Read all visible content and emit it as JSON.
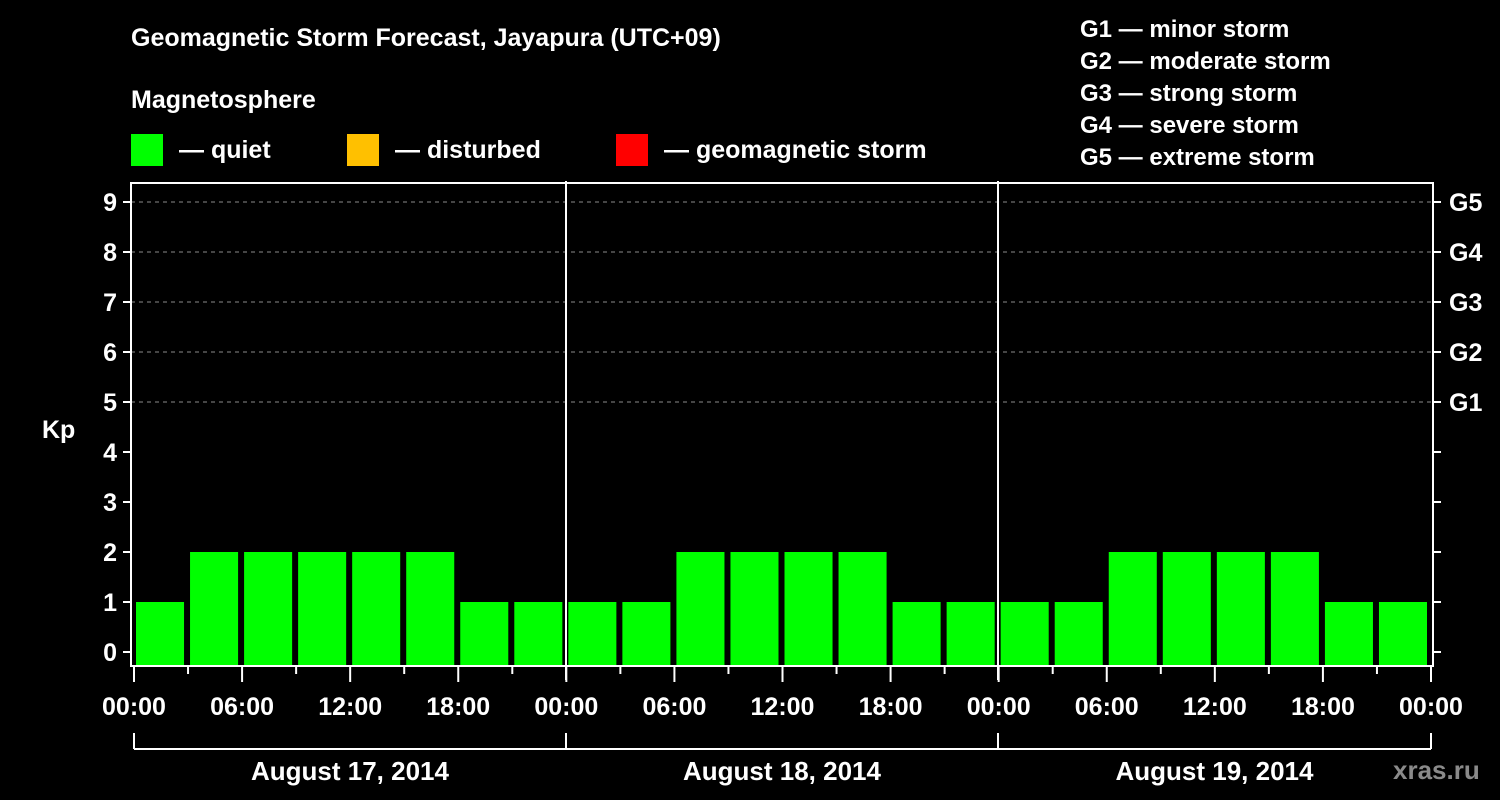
{
  "header": {
    "title": "Geomagnetic Storm Forecast, Jayapura (UTC+09)",
    "subtitle": "Magnetosphere"
  },
  "legend": [
    {
      "label": "— quiet",
      "color": "#00ff00"
    },
    {
      "label": "— disturbed",
      "color": "#ffc000"
    },
    {
      "label": "— geomagnetic storm",
      "color": "#ff0000"
    }
  ],
  "g_scale_legend": [
    "G1 — minor storm",
    "G2 — moderate storm",
    "G3 — strong storm",
    "G4 — severe storm",
    "G5 — extreme storm"
  ],
  "watermark": "xras.ru",
  "chart_data": {
    "type": "bar",
    "title": "Geomagnetic Storm Forecast, Jayapura (UTC+09)",
    "ylabel": "Kp",
    "xlabel": "",
    "ylim": [
      0,
      9
    ],
    "yticks": [
      0,
      1,
      2,
      3,
      4,
      5,
      6,
      7,
      8,
      9
    ],
    "right_axis_labels": [
      {
        "kp": 5,
        "label": "G1"
      },
      {
        "kp": 6,
        "label": "G2"
      },
      {
        "kp": 7,
        "label": "G3"
      },
      {
        "kp": 8,
        "label": "G4"
      },
      {
        "kp": 9,
        "label": "G5"
      }
    ],
    "grid": {
      "horizontal_dashed_at": [
        5,
        6,
        7,
        8,
        9
      ]
    },
    "xtick_labels": [
      "00:00",
      "06:00",
      "12:00",
      "18:00",
      "00:00",
      "06:00",
      "12:00",
      "18:00",
      "00:00",
      "06:00",
      "12:00",
      "18:00",
      "00:00"
    ],
    "days": [
      "August 17, 2014",
      "August 18, 2014",
      "August 19, 2014"
    ],
    "interval_hours": 3,
    "categories": [
      "Aug 17 00-03",
      "Aug 17 03-06",
      "Aug 17 06-09",
      "Aug 17 09-12",
      "Aug 17 12-15",
      "Aug 17 15-18",
      "Aug 17 18-21",
      "Aug 17 21-24",
      "Aug 18 00-03",
      "Aug 18 03-06",
      "Aug 18 06-09",
      "Aug 18 09-12",
      "Aug 18 12-15",
      "Aug 18 15-18",
      "Aug 18 18-21",
      "Aug 18 21-24",
      "Aug 19 00-03",
      "Aug 19 03-06",
      "Aug 19 06-09",
      "Aug 19 09-12",
      "Aug 19 12-15",
      "Aug 19 15-18",
      "Aug 19 18-21",
      "Aug 19 21-24"
    ],
    "values": [
      1,
      2,
      2,
      2,
      2,
      2,
      1,
      1,
      1,
      1,
      2,
      2,
      2,
      2,
      1,
      1,
      1,
      1,
      2,
      2,
      2,
      2,
      1,
      1
    ],
    "bar_color": "#00ff00",
    "status": "quiet"
  }
}
